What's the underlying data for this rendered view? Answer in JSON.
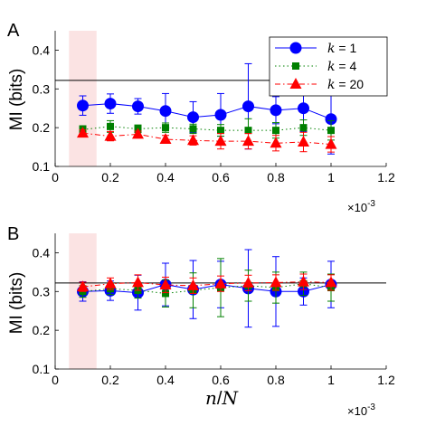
{
  "chart_data": [
    {
      "type": "scatter",
      "panel_label": "A",
      "ylabel": "MI (bits)",
      "xlabel": "",
      "x_exponent_label": "×10",
      "x_exponent_power": "-3",
      "xlim": [
        0,
        1.2
      ],
      "ylim": [
        0.1,
        0.45
      ],
      "x_ticks": [
        0,
        0.2,
        0.4,
        0.6,
        0.8,
        1,
        1.2
      ],
      "x_tick_labels": [
        "0",
        "0.2",
        "0.4",
        "0.6",
        "0.8",
        "1",
        "1.2"
      ],
      "y_ticks": [
        0.1,
        0.2,
        0.3,
        0.4
      ],
      "y_tick_labels": [
        "0.1",
        "0.2",
        "0.3",
        "0.4"
      ],
      "reference_line_y": 0.322,
      "shaded_band_x": [
        0.05,
        0.15
      ],
      "legend_position": "top-right",
      "x": [
        0.1,
        0.2,
        0.3,
        0.4,
        0.5,
        0.6,
        0.7,
        0.8,
        0.9,
        1.0
      ],
      "series": [
        {
          "name": "k = 1",
          "k_value": "1",
          "color": "#0000ff",
          "marker": "circle",
          "line_style": "solid",
          "values": [
            0.257,
            0.262,
            0.255,
            0.243,
            0.227,
            0.233,
            0.255,
            0.245,
            0.25,
            0.222
          ],
          "error": [
            0.025,
            0.025,
            0.02,
            0.045,
            0.04,
            0.055,
            0.11,
            0.035,
            0.06,
            0.09
          ]
        },
        {
          "name": "k = 4",
          "k_value": "4",
          "color": "#008000",
          "marker": "square",
          "line_style": "dotted",
          "values": [
            0.195,
            0.203,
            0.197,
            0.2,
            0.197,
            0.193,
            0.193,
            0.193,
            0.2,
            0.193
          ],
          "error": [
            0.01,
            0.015,
            0.01,
            0.012,
            0.012,
            0.015,
            0.03,
            0.02,
            0.02,
            0.025
          ]
        },
        {
          "name": "k = 20",
          "k_value": "20",
          "color": "#ff0000",
          "marker": "triangle",
          "line_style": "dashdot",
          "values": [
            0.186,
            0.178,
            0.183,
            0.17,
            0.167,
            0.165,
            0.165,
            0.16,
            0.163,
            0.157
          ],
          "error": [
            0.008,
            0.012,
            0.008,
            0.01,
            0.012,
            0.02,
            0.02,
            0.02,
            0.025,
            0.02
          ]
        }
      ]
    },
    {
      "type": "scatter",
      "panel_label": "B",
      "ylabel": "MI (bits)",
      "xlabel_var_n": "n",
      "xlabel_slash": "/",
      "xlabel_var_N": "N",
      "x_exponent_label": "×10",
      "x_exponent_power": "-3",
      "xlim": [
        0,
        1.2
      ],
      "ylim": [
        0.1,
        0.45
      ],
      "x_ticks": [
        0,
        0.2,
        0.4,
        0.6,
        0.8,
        1,
        1.2
      ],
      "x_tick_labels": [
        "0",
        "0.2",
        "0.4",
        "0.6",
        "0.8",
        "1",
        "1.2"
      ],
      "y_ticks": [
        0.1,
        0.2,
        0.3,
        0.4
      ],
      "y_tick_labels": [
        "0.1",
        "0.2",
        "0.3",
        "0.4"
      ],
      "reference_line_y": 0.322,
      "shaded_band_x": [
        0.05,
        0.15
      ],
      "x": [
        0.1,
        0.2,
        0.3,
        0.4,
        0.5,
        0.6,
        0.7,
        0.8,
        0.9,
        1.0
      ],
      "series": [
        {
          "name": "k = 1",
          "color": "#0000ff",
          "marker": "circle",
          "line_style": "solid",
          "values": [
            0.3,
            0.302,
            0.297,
            0.318,
            0.305,
            0.318,
            0.308,
            0.3,
            0.3,
            0.318
          ],
          "error": [
            0.025,
            0.025,
            0.045,
            0.055,
            0.075,
            0.06,
            0.1,
            0.09,
            0.035,
            0.06
          ]
        },
        {
          "name": "k = 4",
          "color": "#008000",
          "marker": "square",
          "line_style": "dotted",
          "values": [
            0.3,
            0.307,
            0.303,
            0.295,
            0.303,
            0.31,
            0.315,
            0.31,
            0.32,
            0.31
          ],
          "error": [
            0.015,
            0.015,
            0.02,
            0.035,
            0.045,
            0.075,
            0.04,
            0.04,
            0.03,
            0.035
          ]
        },
        {
          "name": "k = 20",
          "color": "#ff0000",
          "marker": "triangle",
          "line_style": "dashdot",
          "values": [
            0.312,
            0.32,
            0.323,
            0.317,
            0.315,
            0.32,
            0.322,
            0.323,
            0.325,
            0.323
          ],
          "error": [
            0.012,
            0.015,
            0.02,
            0.02,
            0.02,
            0.02,
            0.02,
            0.02,
            0.02,
            0.02
          ]
        }
      ]
    }
  ]
}
